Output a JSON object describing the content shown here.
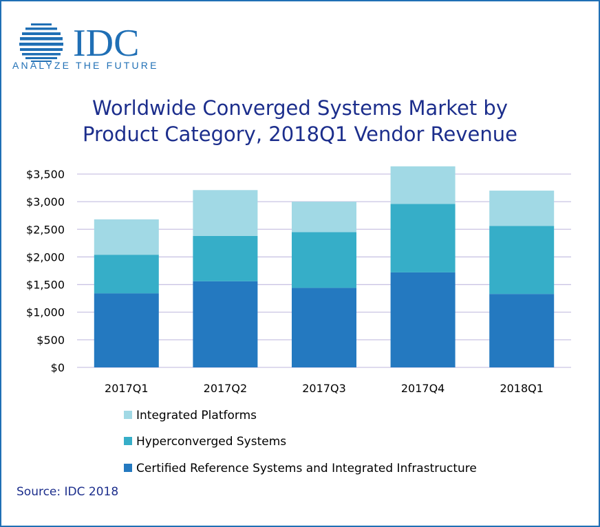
{
  "logo": {
    "name": "IDC",
    "tagline": "ANALYZE THE FUTURE",
    "color": "#1f6fb5"
  },
  "source": "Source: IDC 2018",
  "colors": {
    "integrated_platforms": "#a1d9e5",
    "hyperconverged": "#36aec8",
    "certified_reference": "#2479c0",
    "grid": "#c9c3e3",
    "title": "#1c2e8c"
  },
  "chart_data": {
    "type": "bar",
    "stacked": true,
    "title_lines": [
      "Worldwide Converged Systems Market by",
      "Product Category, 2018Q1 Vendor Revenue"
    ],
    "categories": [
      "2017Q1",
      "2017Q2",
      "2017Q3",
      "2017Q4",
      "2018Q1"
    ],
    "series": [
      {
        "name": "Certified Reference Systems and Integrated Infrastructure",
        "color": "#2479c0",
        "values": [
          1340,
          1560,
          1440,
          1720,
          1330
        ]
      },
      {
        "name": "Hyperconverged Systems",
        "color": "#36aec8",
        "values": [
          700,
          820,
          1010,
          1240,
          1230
        ]
      },
      {
        "name": "Integrated Platforms",
        "color": "#a1d9e5",
        "values": [
          640,
          830,
          550,
          680,
          640
        ]
      }
    ],
    "ylim": [
      0,
      3500
    ],
    "yticks": [
      0,
      500,
      1000,
      1500,
      2000,
      2500,
      3000,
      3500
    ],
    "ytick_labels": [
      "$0",
      "$500",
      "$1,000",
      "$1,500",
      "$2,000",
      "$2,500",
      "$3,000",
      "$3,500"
    ],
    "grid": true,
    "legend_position": "bottom"
  }
}
